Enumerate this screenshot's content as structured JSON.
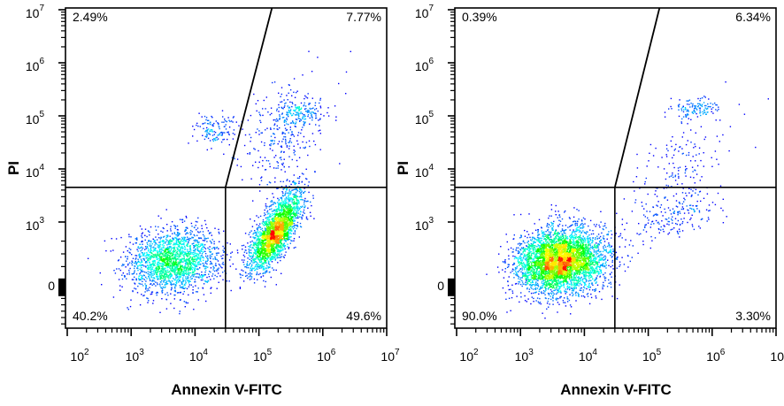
{
  "chart_data": [
    {
      "type": "scatter",
      "subtype": "flow-cytometry density dot plot",
      "xlabel": "Annexin V-FITC",
      "ylabel": "PI",
      "x_scale": "log",
      "y_scale": "biexponential",
      "xlim": [
        100,
        10000000
      ],
      "ylim": [
        -700,
        10000000
      ],
      "xticks": [
        {
          "base": "10",
          "exp": "2"
        },
        {
          "base": "10",
          "exp": "3"
        },
        {
          "base": "10",
          "exp": "4"
        },
        {
          "base": "10",
          "exp": "5"
        },
        {
          "base": "10",
          "exp": "6"
        },
        {
          "base": "10",
          "exp": "7"
        }
      ],
      "yticks": [
        {
          "base": "0",
          "exp": ""
        },
        {
          "base": "10",
          "exp": "3"
        },
        {
          "base": "10",
          "exp": "4"
        },
        {
          "base": "10",
          "exp": "5"
        },
        {
          "base": "10",
          "exp": "6"
        },
        {
          "base": "10",
          "exp": "7"
        }
      ],
      "gates": {
        "vertical_x": 30000,
        "horizontal_y": 4500,
        "diagonal_top_x": 160000
      },
      "quadrants": {
        "upper_left": "2.49%",
        "upper_right": "7.77%",
        "lower_left": "40.2%",
        "lower_right": "49.6%"
      },
      "populations": [
        {
          "name_on_chart": "",
          "center_x": 4500,
          "center_y": 400,
          "spread_decades_x": 0.36,
          "spread_decades_y": 0.3,
          "corr": 0.1,
          "events": 2000
        },
        {
          "name_on_chart": "",
          "center_x": 180000,
          "center_y": 850,
          "spread_decades_x": 0.2,
          "spread_decades_y": 0.36,
          "corr": 0.7,
          "events": 2450
        },
        {
          "name_on_chart": "",
          "center_x": 250000,
          "center_y": 50000,
          "spread_decades_x": 0.35,
          "spread_decades_y": 0.5,
          "corr": 0.4,
          "events": 330
        },
        {
          "name_on_chart": "",
          "center_x": 400000,
          "center_y": 110000,
          "spread_decades_x": 0.2,
          "spread_decades_y": 0.1,
          "corr": 0.0,
          "events": 120
        },
        {
          "name_on_chart": "",
          "center_x": 20000,
          "center_y": 55000,
          "spread_decades_x": 0.17,
          "spread_decades_y": 0.15,
          "corr": 0.0,
          "events": 130
        }
      ],
      "colormap": [
        "#0000ff",
        "#00ffff",
        "#00ff00",
        "#ffff00",
        "#ff0000"
      ]
    },
    {
      "type": "scatter",
      "subtype": "flow-cytometry density dot plot",
      "xlabel": "Annexin V-FITC",
      "ylabel": "PI",
      "x_scale": "log",
      "y_scale": "biexponential",
      "xlim": [
        100,
        10000000
      ],
      "ylim": [
        -700,
        10000000
      ],
      "xticks": [
        {
          "base": "10",
          "exp": "2"
        },
        {
          "base": "10",
          "exp": "3"
        },
        {
          "base": "10",
          "exp": "4"
        },
        {
          "base": "10",
          "exp": "5"
        },
        {
          "base": "10",
          "exp": "6"
        },
        {
          "base": "10",
          "exp": "7"
        }
      ],
      "yticks": [
        {
          "base": "0",
          "exp": ""
        },
        {
          "base": "10",
          "exp": "3"
        },
        {
          "base": "10",
          "exp": "4"
        },
        {
          "base": "10",
          "exp": "5"
        },
        {
          "base": "10",
          "exp": "6"
        },
        {
          "base": "10",
          "exp": "7"
        }
      ],
      "gates": {
        "vertical_x": 30000,
        "horizontal_y": 4500,
        "diagonal_top_x": 150000
      },
      "quadrants": {
        "upper_left": "0.39%",
        "upper_right": "6.34%",
        "lower_left": "90.0%",
        "lower_right": "3.30%"
      },
      "populations": [
        {
          "name_on_chart": "",
          "center_x": 4200,
          "center_y": 400,
          "spread_decades_x": 0.33,
          "spread_decades_y": 0.3,
          "corr": 0.1,
          "events": 4400
        },
        {
          "name_on_chart": "",
          "center_x": 550000,
          "center_y": 140000,
          "spread_decades_x": 0.18,
          "spread_decades_y": 0.08,
          "corr": 0.0,
          "events": 110
        },
        {
          "name_on_chart": "",
          "center_x": 300000,
          "center_y": 10000,
          "spread_decades_x": 0.4,
          "spread_decades_y": 0.6,
          "corr": 0.6,
          "events": 200
        },
        {
          "name_on_chart": "",
          "center_x": 250000,
          "center_y": 1300,
          "spread_decades_x": 0.35,
          "spread_decades_y": 0.25,
          "corr": 0.5,
          "events": 160
        }
      ],
      "colormap": [
        "#0000ff",
        "#00ffff",
        "#00ff00",
        "#ffff00",
        "#ff0000"
      ]
    }
  ]
}
